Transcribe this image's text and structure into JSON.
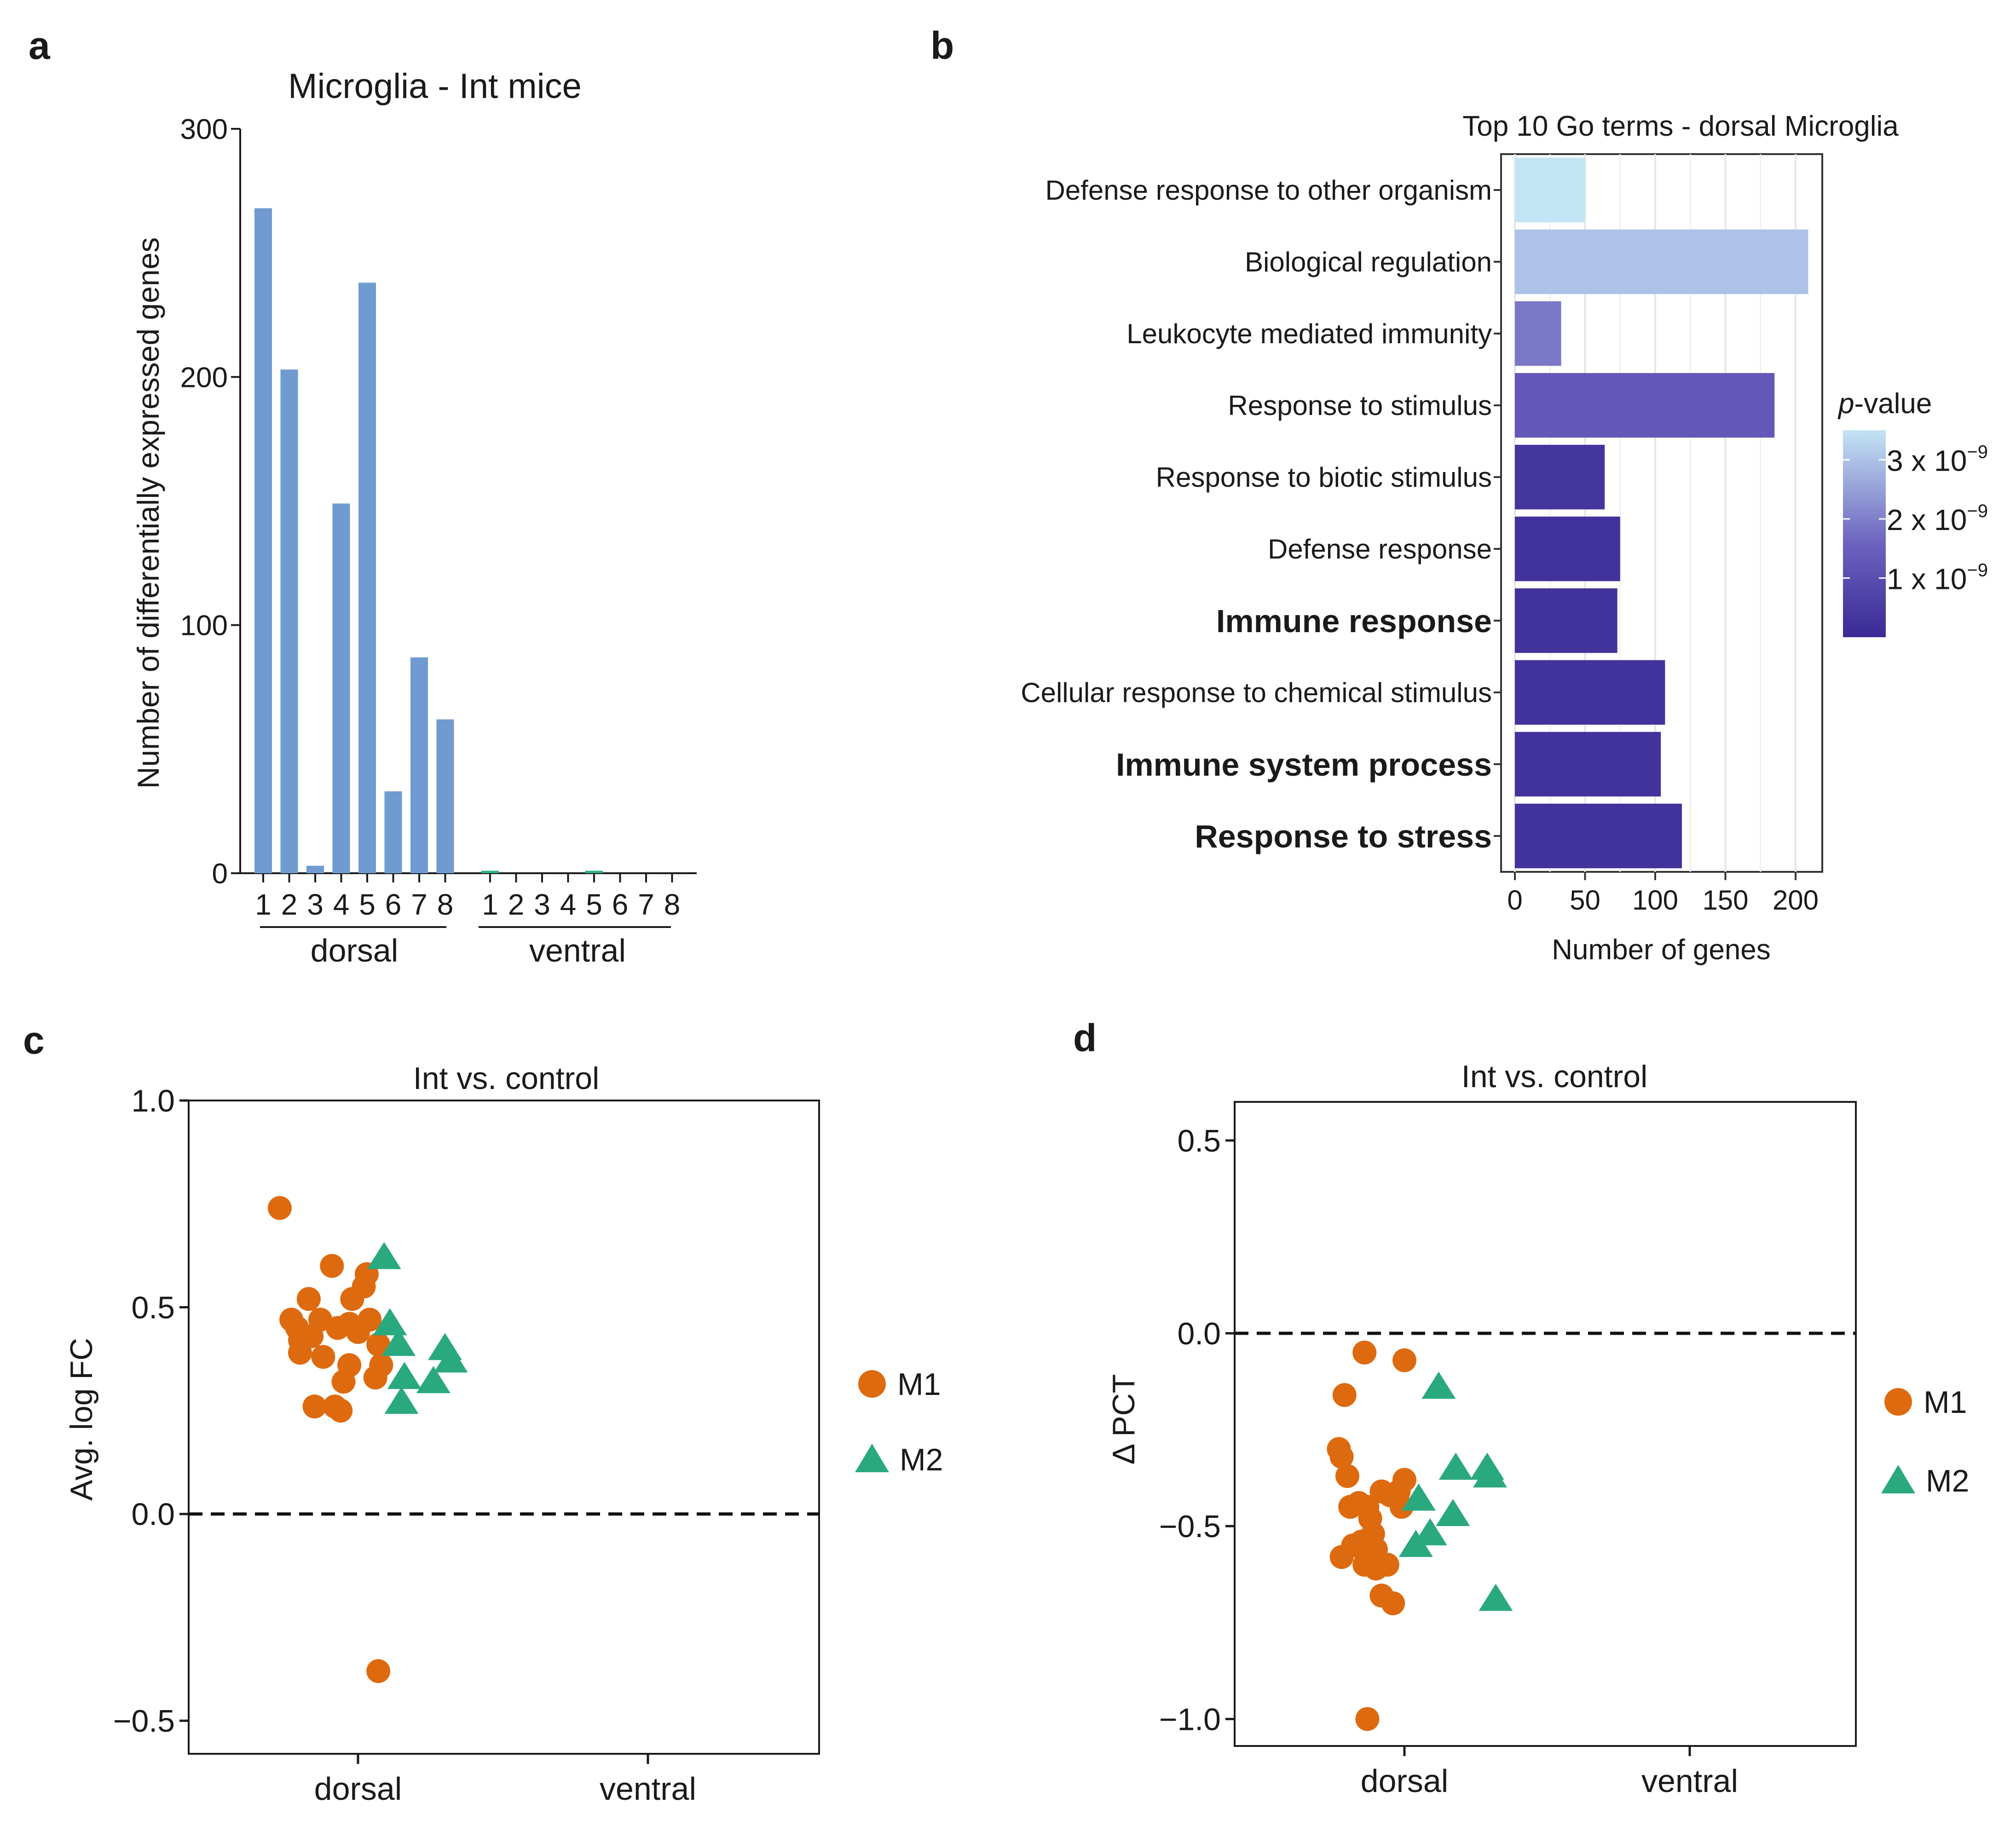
{
  "figure": {
    "panel_labels": [
      "a",
      "b",
      "c",
      "d"
    ]
  },
  "colors": {
    "bar_blue": "#6f9bd1",
    "ventral_green": "#2db37f",
    "m1_orange": "#de6a10",
    "m2_green": "#2aa97e",
    "pval_high": "#c3e4f4",
    "pval_mid": "#6c62bf",
    "pval_low": "#3a2a95"
  },
  "chart_data": [
    {
      "panel": "a",
      "type": "bar",
      "title": "Microglia - Int mice",
      "xlabel": "",
      "ylabel": "Number of differentially expressed genes",
      "ylim": [
        0,
        300
      ],
      "yticks": [
        "0",
        "100",
        "200",
        "300"
      ],
      "groups": [
        {
          "name": "dorsal",
          "categories": [
            "1",
            "2",
            "3",
            "4",
            "5",
            "6",
            "7",
            "8"
          ],
          "values": [
            268,
            203,
            3,
            149,
            238,
            33,
            87,
            62
          ]
        },
        {
          "name": "ventral",
          "categories": [
            "1",
            "2",
            "3",
            "4",
            "5",
            "6",
            "7",
            "8"
          ],
          "values": [
            1,
            0,
            0,
            0,
            1,
            0,
            0,
            0
          ]
        }
      ]
    },
    {
      "panel": "b",
      "type": "bar",
      "orientation": "horizontal",
      "title": "Top 10 Go terms - dorsal Microglia",
      "xlabel": "Number of genes",
      "ylabel": "",
      "xlim": [
        0,
        220
      ],
      "xticks": [
        "0",
        "50",
        "100",
        "150",
        "200"
      ],
      "categories": [
        "Defense response to other organism",
        "Biological regulation",
        "Leukocyte mediated immunity",
        "Response to stimulus",
        "Response to biotic stimulus",
        "Defense response",
        "Immune response",
        "Cellular response to chemical stimulus",
        "Immune system process",
        "Response to stress"
      ],
      "bold": [
        false,
        false,
        false,
        false,
        false,
        false,
        true,
        false,
        true,
        true
      ],
      "values": [
        50,
        209,
        33,
        185,
        64,
        75,
        73,
        107,
        104,
        119
      ],
      "pvalues_e9": [
        3.5,
        3.0,
        1.9,
        1.3,
        0.35,
        0.25,
        0.25,
        0.25,
        0.25,
        0.25
      ],
      "legend": {
        "title_italic": "p",
        "title_rest": "-value",
        "labels": [
          {
            "mantissa": "3 x 10",
            "exponent": "−9",
            "value_e9": 3
          },
          {
            "mantissa": "2 x 10",
            "exponent": "−9",
            "value_e9": 2
          },
          {
            "mantissa": "1 x 10",
            "exponent": "−9",
            "value_e9": 1
          }
        ],
        "range_e9": [
          0,
          3.5
        ]
      }
    },
    {
      "panel": "c",
      "type": "scatter",
      "title": "Int vs. control",
      "xlabel": "",
      "ylabel": "Avg. log FC",
      "ylim": [
        -0.58,
        1.0
      ],
      "yticks": [
        {
          "v": 1.0,
          "l": "1.0"
        },
        {
          "v": 0.5,
          "l": "0.5"
        },
        {
          "v": 0.0,
          "l": "0.0"
        },
        {
          "v": -0.5,
          "l": "−0.5"
        }
      ],
      "categories": [
        "dorsal",
        "ventral"
      ],
      "reference_line": 0.0,
      "legend": [
        "M1",
        "M2"
      ],
      "series": [
        {
          "name": "M1",
          "marker": "circle",
          "points": [
            {
              "x": 0.73,
              "y": 0.74
            },
            {
              "x": 0.77,
              "y": 0.47
            },
            {
              "x": 0.79,
              "y": 0.45
            },
            {
              "x": 0.8,
              "y": 0.42
            },
            {
              "x": 0.8,
              "y": 0.39
            },
            {
              "x": 0.83,
              "y": 0.52
            },
            {
              "x": 0.84,
              "y": 0.43
            },
            {
              "x": 0.87,
              "y": 0.47
            },
            {
              "x": 0.88,
              "y": 0.38
            },
            {
              "x": 0.85,
              "y": 0.26
            },
            {
              "x": 0.91,
              "y": 0.6
            },
            {
              "x": 0.93,
              "y": 0.45
            },
            {
              "x": 0.92,
              "y": 0.26
            },
            {
              "x": 0.94,
              "y": 0.25
            },
            {
              "x": 0.95,
              "y": 0.32
            },
            {
              "x": 0.97,
              "y": 0.46
            },
            {
              "x": 0.98,
              "y": 0.52
            },
            {
              "x": 1.0,
              "y": 0.44
            },
            {
              "x": 1.03,
              "y": 0.58
            },
            {
              "x": 1.02,
              "y": 0.55
            },
            {
              "x": 1.04,
              "y": 0.47
            },
            {
              "x": 1.07,
              "y": 0.41
            },
            {
              "x": 1.06,
              "y": 0.33
            },
            {
              "x": 1.08,
              "y": 0.36
            },
            {
              "x": 0.97,
              "y": 0.36
            },
            {
              "x": 1.07,
              "y": -0.38
            }
          ]
        },
        {
          "name": "M2",
          "marker": "triangle",
          "points": [
            {
              "x": 1.09,
              "y": 0.62
            },
            {
              "x": 1.11,
              "y": 0.46
            },
            {
              "x": 1.14,
              "y": 0.41
            },
            {
              "x": 1.16,
              "y": 0.33
            },
            {
              "x": 1.15,
              "y": 0.27
            },
            {
              "x": 1.26,
              "y": 0.32
            },
            {
              "x": 1.3,
              "y": 0.4
            },
            {
              "x": 1.32,
              "y": 0.37
            }
          ]
        }
      ]
    },
    {
      "panel": "d",
      "type": "scatter",
      "title": "Int vs. control",
      "xlabel": "",
      "ylabel": "Δ PCT",
      "ylim": [
        -1.07,
        0.6
      ],
      "yticks": [
        {
          "v": 0.5,
          "l": "0.5"
        },
        {
          "v": 0.0,
          "l": "0.0"
        },
        {
          "v": -0.5,
          "l": "−0.5"
        },
        {
          "v": -1.0,
          "l": "−1.0"
        }
      ],
      "categories": [
        "dorsal",
        "ventral"
      ],
      "reference_line": 0.0,
      "legend": [
        "M1",
        "M2"
      ],
      "series": [
        {
          "name": "M1",
          "marker": "circle",
          "points": [
            {
              "x": 0.77,
              "y": -0.3
            },
            {
              "x": 0.78,
              "y": -0.32
            },
            {
              "x": 0.8,
              "y": -0.37
            },
            {
              "x": 0.79,
              "y": -0.16
            },
            {
              "x": 0.86,
              "y": -0.05
            },
            {
              "x": 1.0,
              "y": -0.07
            },
            {
              "x": 0.81,
              "y": -0.45
            },
            {
              "x": 0.84,
              "y": -0.44
            },
            {
              "x": 0.87,
              "y": -0.45
            },
            {
              "x": 0.88,
              "y": -0.48
            },
            {
              "x": 0.92,
              "y": -0.41
            },
            {
              "x": 0.95,
              "y": -0.42
            },
            {
              "x": 0.98,
              "y": -0.41
            },
            {
              "x": 1.0,
              "y": -0.38
            },
            {
              "x": 0.99,
              "y": -0.45
            },
            {
              "x": 0.82,
              "y": -0.55
            },
            {
              "x": 0.85,
              "y": -0.54
            },
            {
              "x": 0.78,
              "y": -0.58
            },
            {
              "x": 0.89,
              "y": -0.52
            },
            {
              "x": 0.9,
              "y": -0.56
            },
            {
              "x": 0.86,
              "y": -0.6
            },
            {
              "x": 0.9,
              "y": -0.61
            },
            {
              "x": 0.94,
              "y": -0.6
            },
            {
              "x": 0.92,
              "y": -0.68
            },
            {
              "x": 0.96,
              "y": -0.7
            },
            {
              "x": 0.87,
              "y": -1.0
            }
          ]
        },
        {
          "name": "M2",
          "marker": "triangle",
          "points": [
            {
              "x": 1.12,
              "y": -0.14
            },
            {
              "x": 1.18,
              "y": -0.35
            },
            {
              "x": 1.29,
              "y": -0.35
            },
            {
              "x": 1.3,
              "y": -0.37
            },
            {
              "x": 1.05,
              "y": -0.43
            },
            {
              "x": 1.17,
              "y": -0.47
            },
            {
              "x": 1.09,
              "y": -0.52
            },
            {
              "x": 1.04,
              "y": -0.55
            },
            {
              "x": 1.32,
              "y": -0.69
            }
          ]
        }
      ]
    }
  ]
}
